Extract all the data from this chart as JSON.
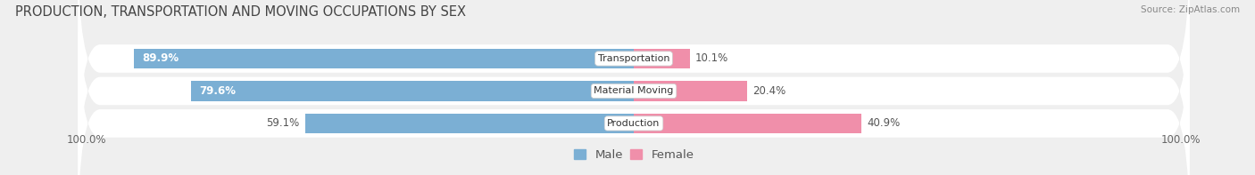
{
  "title": "PRODUCTION, TRANSPORTATION AND MOVING OCCUPATIONS BY SEX",
  "source": "Source: ZipAtlas.com",
  "categories": [
    "Transportation",
    "Material Moving",
    "Production"
  ],
  "male_values": [
    89.9,
    79.6,
    59.1
  ],
  "female_values": [
    10.1,
    20.4,
    40.9
  ],
  "male_color": "#7bafd4",
  "female_color": "#f08faa",
  "male_label": "Male",
  "female_label": "Female",
  "bg_color": "#efefef",
  "row_bg_color": "#e2e2e2",
  "axis_label_left": "100.0%",
  "axis_label_right": "100.0%",
  "title_fontsize": 10.5,
  "label_fontsize": 8.5,
  "cat_fontsize": 8.0,
  "legend_fontsize": 9.5,
  "source_fontsize": 7.5
}
